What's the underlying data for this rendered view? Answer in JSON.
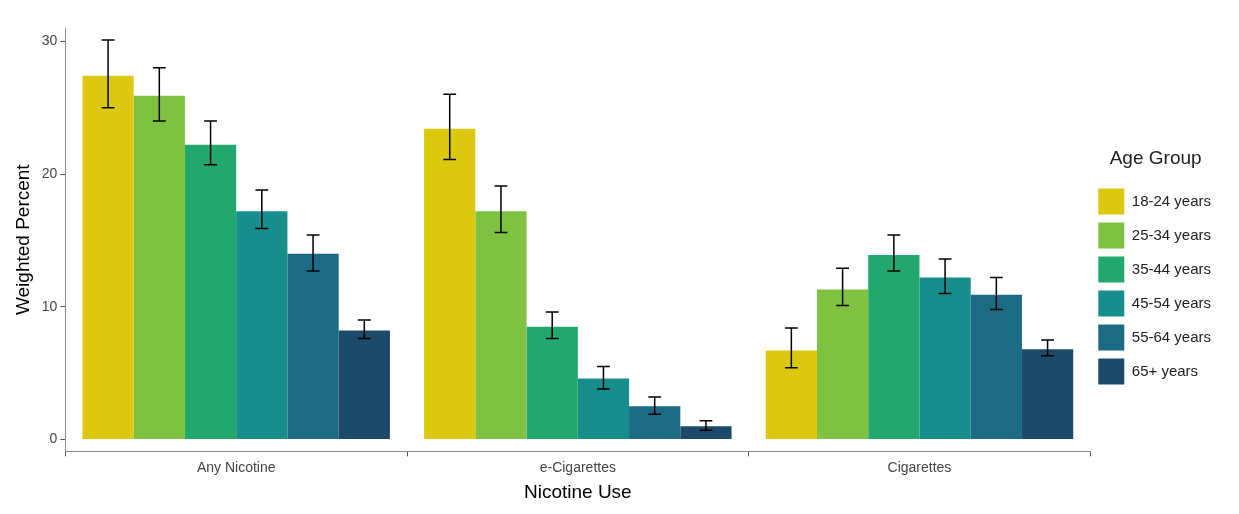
{
  "chart_data": {
    "type": "bar",
    "xlabel": "Nicotine Use",
    "ylabel": "Weighted Percent",
    "legend_title": "Age Group",
    "categories": [
      "Any Nicotine",
      "e-Cigarettes",
      "Cigarettes"
    ],
    "series": [
      {
        "name": "18-24 years",
        "color": "#dcc90f",
        "values": [
          27.4,
          23.4,
          6.7
        ],
        "errors": [
          [
            25.0,
            30.1
          ],
          [
            21.1,
            26.0
          ],
          [
            5.4,
            8.4
          ]
        ]
      },
      {
        "name": "25-34 years",
        "color": "#7fc241",
        "values": [
          25.9,
          17.2,
          11.3
        ],
        "errors": [
          [
            24.0,
            28.0
          ],
          [
            15.6,
            19.1
          ],
          [
            10.1,
            12.9
          ]
        ]
      },
      {
        "name": "35-44 years",
        "color": "#22a86f",
        "values": [
          22.2,
          8.5,
          13.9
        ],
        "errors": [
          [
            20.7,
            24.0
          ],
          [
            7.6,
            9.6
          ],
          [
            12.7,
            15.4
          ]
        ]
      },
      {
        "name": "45-54 years",
        "color": "#178e8b",
        "values": [
          17.2,
          4.6,
          12.2
        ],
        "errors": [
          [
            15.9,
            18.8
          ],
          [
            3.8,
            5.5
          ],
          [
            11.0,
            13.6
          ]
        ]
      },
      {
        "name": "55-64 years",
        "color": "#1b6b85",
        "values": [
          14.0,
          2.5,
          10.9
        ],
        "errors": [
          [
            12.7,
            15.4
          ],
          [
            1.9,
            3.2
          ],
          [
            9.8,
            12.2
          ]
        ]
      },
      {
        "name": "65+ years",
        "color": "#1d4a69",
        "values": [
          8.2,
          1.0,
          6.8
        ],
        "errors": [
          [
            7.6,
            9.0
          ],
          [
            0.7,
            1.4
          ],
          [
            6.3,
            7.5
          ]
        ]
      }
    ],
    "ylim": [
      -0.9,
      31
    ],
    "yticks": [
      0,
      10,
      20,
      30
    ],
    "grid": false,
    "legend": "right"
  }
}
